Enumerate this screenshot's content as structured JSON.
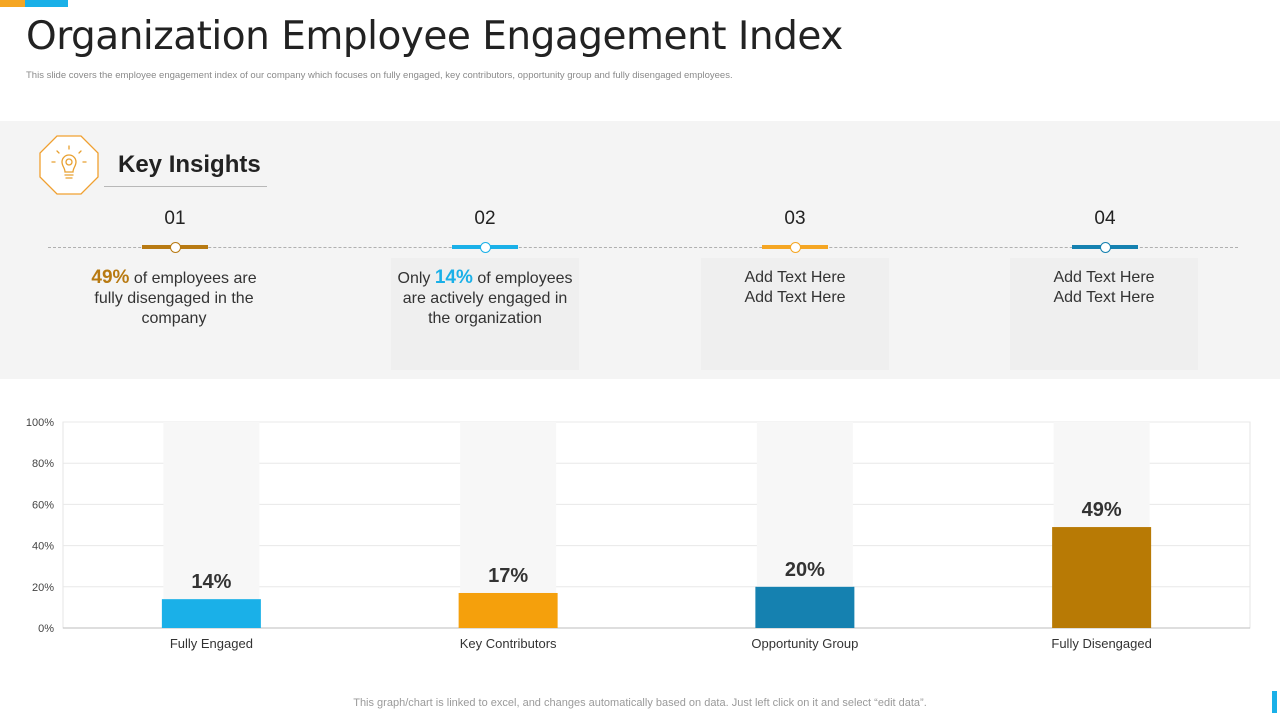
{
  "slide": {
    "title": "Organization Employee Engagement Index",
    "subtitle": "This slide covers the employee engagement index of our company which focuses on fully engaged, key contributors, opportunity group and fully disengaged employees.",
    "footer": "This graph/chart is linked to excel,  and changes automatically based on data. Just left click on it and select “edit data”.",
    "colors": {
      "orange": "#f5a623",
      "blue": "#1ab0e8",
      "bronze": "#b87a12",
      "dark_blue": "#1581b0"
    }
  },
  "insights": {
    "heading": "Key Insights",
    "badge_icon": "lightbulb-icon",
    "steps": [
      {
        "num": "01",
        "color": "#b87a12",
        "pre": "",
        "pct": "49%",
        "post": " of employees are fully  disengaged in the company"
      },
      {
        "num": "02",
        "color": "#1ab0e8",
        "pre": "Only ",
        "pct": "14%",
        "post": " of employees are actively engaged in the organization"
      },
      {
        "num": "03",
        "color": "#f5a623",
        "text1": "Add Text Here",
        "text2": "Add Text Here"
      },
      {
        "num": "04",
        "color": "#1581b0",
        "text1": "Add Text Here",
        "text2": "Add Text Here"
      }
    ]
  },
  "chart_data": {
    "type": "bar",
    "categories": [
      "Fully Engaged",
      "Key Contributors",
      "Opportunity Group",
      "Fully Disengaged"
    ],
    "values": [
      14,
      17,
      20,
      49
    ],
    "value_labels": [
      "14%",
      "17%",
      "20%",
      "49%"
    ],
    "colors": [
      "#1ab0e8",
      "#f5a00c",
      "#1581b0",
      "#b87a05"
    ],
    "y_ticks": [
      0,
      20,
      40,
      60,
      80,
      100
    ],
    "y_tick_labels": [
      "0%",
      "20%",
      "40%",
      "60%",
      "80%",
      "100%"
    ],
    "ylim": [
      0,
      100
    ],
    "grid": true,
    "title": "",
    "xlabel": "",
    "ylabel": ""
  }
}
